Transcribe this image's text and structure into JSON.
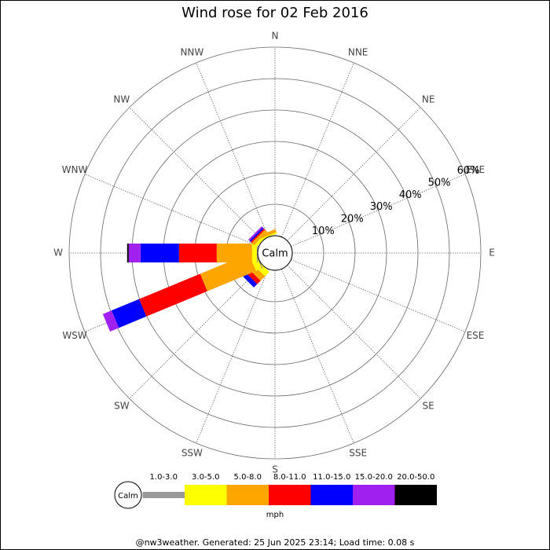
{
  "chart_data": {
    "type": "wind_rose",
    "title": "Wind rose for 02 Feb 2016",
    "directions": [
      "N",
      "NNE",
      "NE",
      "ENE",
      "E",
      "ESE",
      "SE",
      "SSE",
      "S",
      "SSW",
      "SW",
      "WSW",
      "W",
      "WNW",
      "NW",
      "NNW"
    ],
    "rlim": [
      0,
      60
    ],
    "rticks": [
      {
        "value": 10,
        "label": "10%"
      },
      {
        "value": 20,
        "label": "20%"
      },
      {
        "value": 30,
        "label": "30%"
      },
      {
        "value": 40,
        "label": "40%"
      },
      {
        "value": 50,
        "label": "50%"
      },
      {
        "value": 60,
        "label": "60%"
      }
    ],
    "calm_label": "Calm",
    "units": "mph",
    "series": [
      {
        "name": "1.0-3.0",
        "color": "#999999",
        "values": [
          0,
          0,
          0,
          0,
          0,
          0,
          0,
          0,
          0,
          0,
          0,
          0.3,
          0.3,
          0,
          0,
          0
        ]
      },
      {
        "name": "3.0-5.0",
        "color": "#ffff00",
        "values": [
          0,
          0,
          0,
          0,
          0,
          0,
          0,
          0,
          0,
          0,
          2,
          2,
          1.5,
          0,
          1,
          0.5
        ]
      },
      {
        "name": "5.0-8.0",
        "color": "#ffa500",
        "values": [
          0,
          0,
          0,
          0,
          0,
          0,
          0,
          0,
          0,
          0,
          2,
          16.75,
          11.25,
          0,
          1,
          1
        ]
      },
      {
        "name": "8.0-11.0",
        "color": "#ff0000",
        "values": [
          0,
          0,
          0,
          0,
          0,
          0,
          0,
          0,
          0,
          0,
          1.5,
          21,
          12,
          0,
          0.5,
          0
        ]
      },
      {
        "name": "11.0-15.0",
        "color": "#0000ff",
        "values": [
          0,
          0,
          0,
          0,
          0,
          0,
          0,
          0,
          0,
          0,
          1.5,
          9.5,
          12.25,
          0,
          0.5,
          0
        ]
      },
      {
        "name": "15.0-20.0",
        "color": "#a020f0",
        "values": [
          0,
          0,
          0,
          0,
          0,
          0,
          0,
          0,
          0,
          0,
          0,
          3,
          3.75,
          0,
          0.5,
          0
        ]
      },
      {
        "name": "20.0-50.0",
        "color": "#000000",
        "values": [
          0,
          0,
          0,
          0,
          0,
          0,
          0,
          0,
          0,
          0,
          0,
          0,
          0.5,
          0,
          0,
          0
        ]
      }
    ]
  },
  "footer": "@nw3weather. Generated: 25 Jun 2025 23:14; Load time: 0.08 s"
}
